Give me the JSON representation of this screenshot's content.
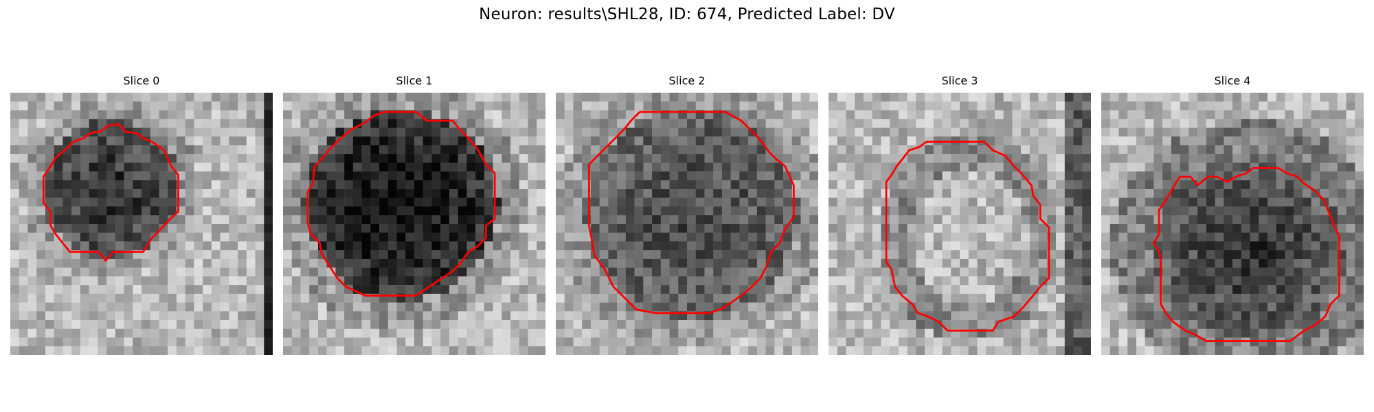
{
  "figure": {
    "title": "Neuron: results\\SHL28, ID: 674, Predicted Label: DV"
  },
  "panels": [
    {
      "title": "Slice 0",
      "outline_color": "#ff0000",
      "seed": 11
    },
    {
      "title": "Slice 1",
      "outline_color": "#ff0000",
      "seed": 23
    },
    {
      "title": "Slice 2",
      "outline_color": "#ff0000",
      "seed": 37
    },
    {
      "title": "Slice 3",
      "outline_color": "#ff0000",
      "seed": 41
    },
    {
      "title": "Slice 4",
      "outline_color": "#ff0000",
      "seed": 59
    }
  ]
}
